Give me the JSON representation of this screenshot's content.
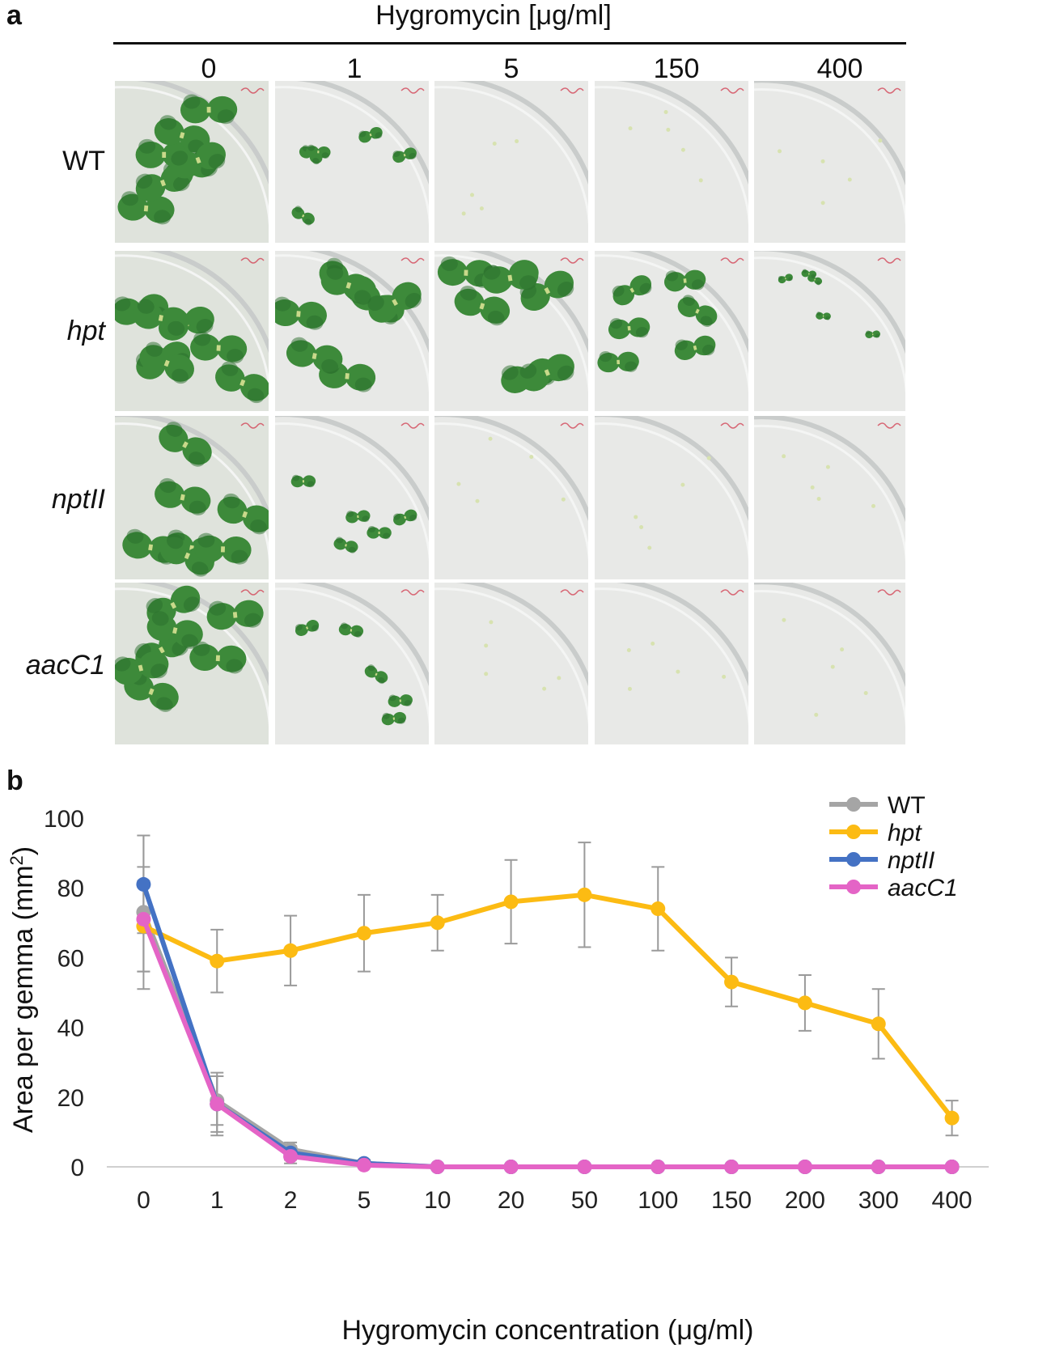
{
  "panel_a": {
    "label": "a",
    "title": "Hygromycin [μg/ml]",
    "columns": [
      "0",
      "1",
      "5",
      "150",
      "400"
    ],
    "rows": [
      {
        "name": "WT",
        "italic": false
      },
      {
        "name": "hpt",
        "italic": true
      },
      {
        "name": "nptII",
        "italic": true
      },
      {
        "name": "aacC1",
        "italic": true
      }
    ],
    "growth": [
      [
        "large",
        "small",
        "none",
        "none",
        "none"
      ],
      [
        "large",
        "large",
        "large",
        "medium",
        "tiny"
      ],
      [
        "large",
        "small",
        "none",
        "none",
        "none"
      ],
      [
        "large",
        "small",
        "none",
        "none",
        "none"
      ]
    ],
    "colors": {
      "thallus": "#3d8a3a",
      "thallus_dark": "#2a6e2b",
      "plate": "#e6e8e5",
      "mark": "#d23a4e"
    }
  },
  "panel_b": {
    "label": "b"
  },
  "chart_data": {
    "type": "line",
    "title": "",
    "xlabel": "Hygromycin concentration (μg/ml)",
    "ylabel": "Area per gemma (mm²)",
    "ylabel_main": "Area per gemma (mm",
    "ylabel_sup": "2",
    "ylabel_close": ")",
    "ylim": [
      0,
      100
    ],
    "yticks": [
      "0",
      "20",
      "40",
      "60",
      "80",
      "100"
    ],
    "categories": [
      "0",
      "1",
      "2",
      "5",
      "10",
      "20",
      "50",
      "100",
      "150",
      "200",
      "300",
      "400"
    ],
    "legend_position": "top-right",
    "grid": false,
    "series": [
      {
        "name": "WT",
        "italic": false,
        "color": "#a5a5a5",
        "values": [
          73,
          19,
          5,
          1,
          0,
          0,
          0,
          0,
          0,
          0,
          0,
          0
        ],
        "err": [
          22,
          7,
          2,
          1,
          0,
          0,
          0,
          0,
          0,
          0,
          0,
          0
        ]
      },
      {
        "name": "hpt",
        "italic": true,
        "color": "#fcbb13",
        "values": [
          69,
          59,
          62,
          67,
          70,
          76,
          78,
          74,
          53,
          47,
          41,
          14
        ],
        "err": [
          13,
          9,
          10,
          11,
          8,
          12,
          15,
          12,
          7,
          8,
          10,
          5
        ]
      },
      {
        "name": "nptII",
        "italic": true,
        "color": "#4472c4",
        "values": [
          81,
          18,
          4,
          1,
          0,
          0,
          0,
          0,
          0,
          0,
          0,
          0
        ],
        "err": [
          14,
          9,
          2,
          1,
          0,
          0,
          0,
          0,
          0,
          0,
          0,
          0
        ]
      },
      {
        "name": "aacC1",
        "italic": true,
        "color": "#e464c6",
        "values": [
          71,
          18,
          3,
          0.5,
          0,
          0,
          0,
          0,
          0,
          0,
          0,
          0
        ],
        "err": [
          15,
          8,
          2,
          0.5,
          0,
          0,
          0,
          0,
          0,
          0,
          0,
          0
        ]
      }
    ]
  }
}
